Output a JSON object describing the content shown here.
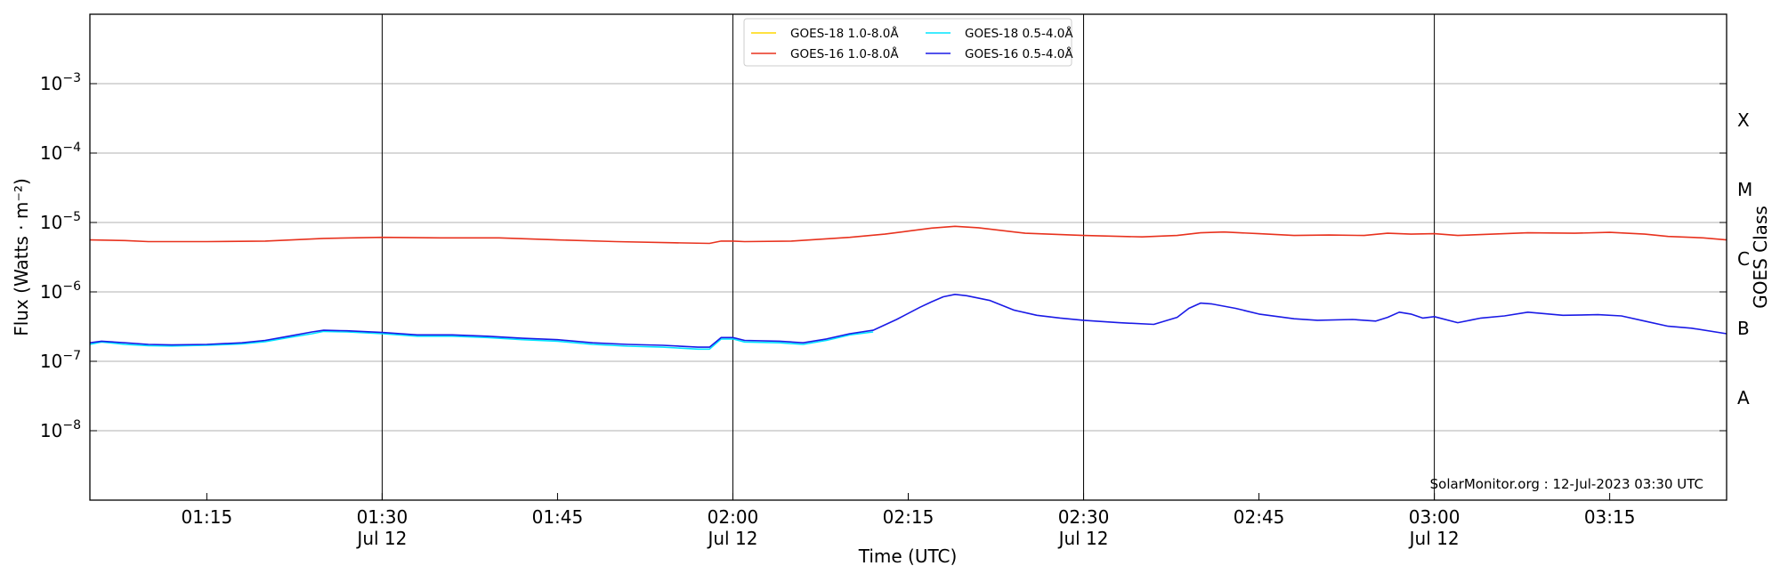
{
  "chart_data": {
    "type": "line",
    "xlabel": "Time (UTC)",
    "ylabel": "Flux (Watts · m⁻²)",
    "y2label": "GOES Class",
    "yscale": "log",
    "ylim": [
      1e-09,
      0.01
    ],
    "xlim": [
      "01:05",
      "03:25"
    ],
    "grid": true,
    "legend_position": "top-center",
    "watermark": "SolarMonitor.org : 12-Jul-2023 03:30 UTC",
    "x_ticks": [
      {
        "time": "01:15",
        "label": "01:15",
        "sub": ""
      },
      {
        "time": "01:30",
        "label": "01:30",
        "sub": "Jul 12"
      },
      {
        "time": "01:45",
        "label": "01:45",
        "sub": ""
      },
      {
        "time": "02:00",
        "label": "02:00",
        "sub": "Jul 12"
      },
      {
        "time": "02:15",
        "label": "02:15",
        "sub": ""
      },
      {
        "time": "02:30",
        "label": "02:30",
        "sub": "Jul 12"
      },
      {
        "time": "02:45",
        "label": "02:45",
        "sub": ""
      },
      {
        "time": "03:00",
        "label": "03:00",
        "sub": "Jul 12"
      },
      {
        "time": "03:15",
        "label": "03:15",
        "sub": ""
      }
    ],
    "y_ticks": [
      {
        "value": 1e-08,
        "base": "10",
        "exp": "−8"
      },
      {
        "value": 1e-07,
        "base": "10",
        "exp": "−7"
      },
      {
        "value": 1e-06,
        "base": "10",
        "exp": "−6"
      },
      {
        "value": 1e-05,
        "base": "10",
        "exp": "−5"
      },
      {
        "value": 0.0001,
        "base": "10",
        "exp": "−4"
      },
      {
        "value": 0.001,
        "base": "10",
        "exp": "−3"
      }
    ],
    "goes_classes": [
      {
        "label": "A",
        "value": 3e-08
      },
      {
        "label": "B",
        "value": 3e-07
      },
      {
        "label": "C",
        "value": 3e-06
      },
      {
        "label": "M",
        "value": 3e-05
      },
      {
        "label": "X",
        "value": 0.0003
      }
    ],
    "vlines": [
      "01:30",
      "02:00",
      "02:30",
      "03:00"
    ],
    "series": [
      {
        "name": "GOES-18 1.0-8.0Å",
        "color": "#ffd700",
        "points": []
      },
      {
        "name": "GOES-18 0.5-4.0Å",
        "color": "#00e5ff",
        "points": [
          [
            "01:05",
            1.75e-07
          ],
          [
            "01:06",
            1.9e-07
          ],
          [
            "01:08",
            1.75e-07
          ],
          [
            "01:10",
            1.68e-07
          ],
          [
            "01:12",
            1.66e-07
          ],
          [
            "01:15",
            1.7e-07
          ],
          [
            "01:18",
            1.78e-07
          ],
          [
            "01:20",
            1.92e-07
          ],
          [
            "01:22",
            2.2e-07
          ],
          [
            "01:24",
            2.5e-07
          ],
          [
            "01:25",
            2.7e-07
          ],
          [
            "01:27",
            2.65e-07
          ],
          [
            "01:30",
            2.5e-07
          ],
          [
            "01:33",
            2.3e-07
          ],
          [
            "01:36",
            2.3e-07
          ],
          [
            "01:39",
            2.2e-07
          ],
          [
            "01:42",
            2.05e-07
          ],
          [
            "01:45",
            1.95e-07
          ],
          [
            "01:48",
            1.75e-07
          ],
          [
            "01:51",
            1.65e-07
          ],
          [
            "01:54",
            1.6e-07
          ],
          [
            "01:57",
            1.5e-07
          ],
          [
            "01:58",
            1.5e-07
          ],
          [
            "01:59",
            2.1e-07
          ],
          [
            "02:00",
            2.1e-07
          ],
          [
            "02:01",
            1.9e-07
          ],
          [
            "02:04",
            1.85e-07
          ],
          [
            "02:06",
            1.75e-07
          ],
          [
            "02:08",
            2e-07
          ],
          [
            "02:10",
            2.4e-07
          ],
          [
            "02:12",
            2.65e-07
          ]
        ]
      },
      {
        "name": "GOES-16 1.0-8.0Å",
        "color": "#e8321e",
        "points": [
          [
            "01:05",
            5.6e-06
          ],
          [
            "01:08",
            5.5e-06
          ],
          [
            "01:10",
            5.3e-06
          ],
          [
            "01:15",
            5.3e-06
          ],
          [
            "01:20",
            5.4e-06
          ],
          [
            "01:25",
            5.9e-06
          ],
          [
            "01:30",
            6.1e-06
          ],
          [
            "01:35",
            6e-06
          ],
          [
            "01:40",
            6e-06
          ],
          [
            "01:45",
            5.6e-06
          ],
          [
            "01:50",
            5.3e-06
          ],
          [
            "01:55",
            5.1e-06
          ],
          [
            "01:58",
            5e-06
          ],
          [
            "01:59",
            5.4e-06
          ],
          [
            "02:00",
            5.4e-06
          ],
          [
            "02:01",
            5.3e-06
          ],
          [
            "02:05",
            5.4e-06
          ],
          [
            "02:10",
            6.1e-06
          ],
          [
            "02:13",
            6.8e-06
          ],
          [
            "02:15",
            7.5e-06
          ],
          [
            "02:17",
            8.3e-06
          ],
          [
            "02:19",
            8.8e-06
          ],
          [
            "02:21",
            8.4e-06
          ],
          [
            "02:25",
            7e-06
          ],
          [
            "02:30",
            6.5e-06
          ],
          [
            "02:35",
            6.2e-06
          ],
          [
            "02:38",
            6.5e-06
          ],
          [
            "02:40",
            7.1e-06
          ],
          [
            "02:42",
            7.3e-06
          ],
          [
            "02:45",
            6.9e-06
          ],
          [
            "02:48",
            6.5e-06
          ],
          [
            "02:51",
            6.6e-06
          ],
          [
            "02:54",
            6.5e-06
          ],
          [
            "02:56",
            7e-06
          ],
          [
            "02:58",
            6.8e-06
          ],
          [
            "03:00",
            6.9e-06
          ],
          [
            "03:02",
            6.5e-06
          ],
          [
            "03:05",
            6.8e-06
          ],
          [
            "03:08",
            7.1e-06
          ],
          [
            "03:12",
            7e-06
          ],
          [
            "03:15",
            7.2e-06
          ],
          [
            "03:18",
            6.8e-06
          ],
          [
            "03:20",
            6.3e-06
          ],
          [
            "03:23",
            6e-06
          ],
          [
            "03:25",
            5.6e-06
          ]
        ]
      },
      {
        "name": "GOES-16 0.5-4.0Å",
        "color": "#1a1ae6",
        "points": [
          [
            "01:05",
            1.85e-07
          ],
          [
            "01:06",
            1.95e-07
          ],
          [
            "01:08",
            1.85e-07
          ],
          [
            "01:10",
            1.75e-07
          ],
          [
            "01:12",
            1.72e-07
          ],
          [
            "01:15",
            1.75e-07
          ],
          [
            "01:18",
            1.85e-07
          ],
          [
            "01:20",
            2e-07
          ],
          [
            "01:22",
            2.3e-07
          ],
          [
            "01:24",
            2.65e-07
          ],
          [
            "01:25",
            2.8e-07
          ],
          [
            "01:27",
            2.75e-07
          ],
          [
            "01:30",
            2.6e-07
          ],
          [
            "01:33",
            2.4e-07
          ],
          [
            "01:36",
            2.4e-07
          ],
          [
            "01:39",
            2.3e-07
          ],
          [
            "01:42",
            2.15e-07
          ],
          [
            "01:45",
            2.05e-07
          ],
          [
            "01:48",
            1.85e-07
          ],
          [
            "01:51",
            1.75e-07
          ],
          [
            "01:54",
            1.7e-07
          ],
          [
            "01:57",
            1.6e-07
          ],
          [
            "01:58",
            1.6e-07
          ],
          [
            "01:59",
            2.2e-07
          ],
          [
            "02:00",
            2.2e-07
          ],
          [
            "02:01",
            2e-07
          ],
          [
            "02:04",
            1.95e-07
          ],
          [
            "02:06",
            1.85e-07
          ],
          [
            "02:08",
            2.1e-07
          ],
          [
            "02:10",
            2.5e-07
          ],
          [
            "02:12",
            2.8e-07
          ],
          [
            "02:14",
            4e-07
          ],
          [
            "02:16",
            6e-07
          ],
          [
            "02:17",
            7.2e-07
          ],
          [
            "02:18",
            8.5e-07
          ],
          [
            "02:19",
            9.2e-07
          ],
          [
            "02:20",
            8.8e-07
          ],
          [
            "02:22",
            7.5e-07
          ],
          [
            "02:24",
            5.5e-07
          ],
          [
            "02:26",
            4.6e-07
          ],
          [
            "02:28",
            4.2e-07
          ],
          [
            "02:30",
            3.9e-07
          ],
          [
            "02:33",
            3.6e-07
          ],
          [
            "02:36",
            3.4e-07
          ],
          [
            "02:38",
            4.3e-07
          ],
          [
            "02:39",
            5.8e-07
          ],
          [
            "02:40",
            6.9e-07
          ],
          [
            "02:41",
            6.7e-07
          ],
          [
            "02:43",
            5.8e-07
          ],
          [
            "02:45",
            4.8e-07
          ],
          [
            "02:48",
            4.1e-07
          ],
          [
            "02:50",
            3.9e-07
          ],
          [
            "02:53",
            4e-07
          ],
          [
            "02:55",
            3.8e-07
          ],
          [
            "02:56",
            4.3e-07
          ],
          [
            "02:57",
            5.1e-07
          ],
          [
            "02:58",
            4.8e-07
          ],
          [
            "02:59",
            4.2e-07
          ],
          [
            "03:00",
            4.4e-07
          ],
          [
            "03:02",
            3.6e-07
          ],
          [
            "03:04",
            4.2e-07
          ],
          [
            "03:06",
            4.5e-07
          ],
          [
            "03:08",
            5.1e-07
          ],
          [
            "03:11",
            4.6e-07
          ],
          [
            "03:14",
            4.7e-07
          ],
          [
            "03:16",
            4.5e-07
          ],
          [
            "03:18",
            3.8e-07
          ],
          [
            "03:20",
            3.2e-07
          ],
          [
            "03:22",
            3e-07
          ],
          [
            "03:25",
            2.5e-07
          ]
        ]
      }
    ]
  }
}
